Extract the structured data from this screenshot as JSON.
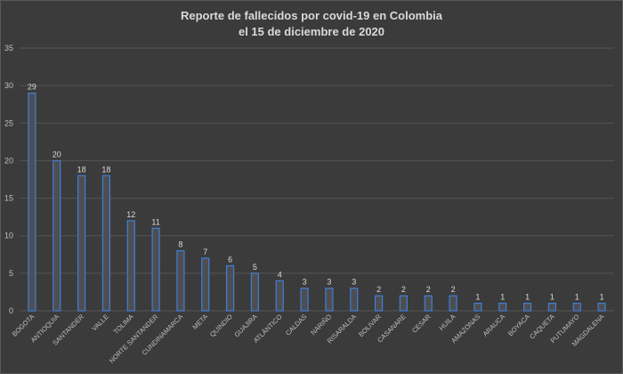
{
  "chart_data": {
    "type": "bar",
    "title": "Reporte de fallecidos por covid-19 en Colombia",
    "subtitle": "el 15 de diciembre de 2020",
    "xlabel": "",
    "ylabel": "",
    "ylim": [
      0,
      35
    ],
    "yticks": [
      0,
      5,
      10,
      15,
      20,
      25,
      30,
      35
    ],
    "grid": true,
    "legend": "none",
    "categories": [
      "BOGOTA",
      "ANTIOQUIA",
      "SANTANDER",
      "VALLE",
      "TOLIMA",
      "NORTE SANTANDER",
      "CUNDINAMARCA",
      "META",
      "QUINDIO",
      "GUAJIRA",
      "ATLÁNTICO",
      "CALDAS",
      "NARIÑO",
      "RISARALDA",
      "BOLIVAR",
      "CASANARE",
      "CESAR",
      "HUILA",
      "AMAZONAS",
      "ARAUCA",
      "BOYACA",
      "CAQUETA",
      "PUTUMAYO",
      "MAGDALENA"
    ],
    "values": [
      29,
      20,
      18,
      18,
      12,
      11,
      8,
      7,
      6,
      5,
      4,
      3,
      3,
      3,
      2,
      2,
      2,
      2,
      1,
      1,
      1,
      1,
      1,
      1
    ],
    "colors": {
      "bar_fill": "#4e4e52",
      "bar_stroke": "#3f7fd6",
      "gridline": "#555555",
      "axis_text": "#bfbfbf",
      "title_text": "#d9d9d9",
      "background": "#3b3b3b"
    }
  }
}
